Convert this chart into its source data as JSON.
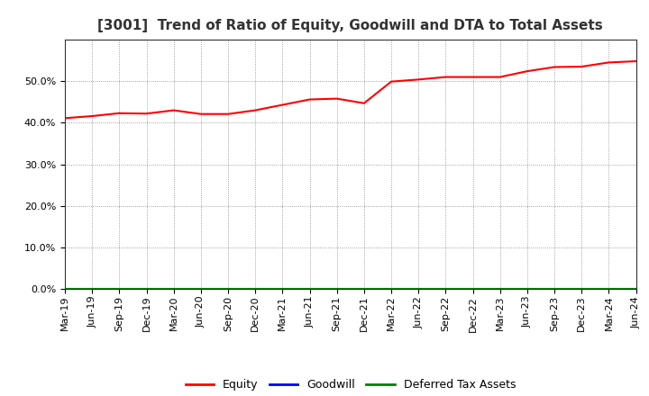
{
  "title": "[3001]  Trend of Ratio of Equity, Goodwill and DTA to Total Assets",
  "x_labels": [
    "Mar-19",
    "Jun-19",
    "Sep-19",
    "Dec-19",
    "Mar-20",
    "Jun-20",
    "Sep-20",
    "Dec-20",
    "Mar-21",
    "Jun-21",
    "Sep-21",
    "Dec-21",
    "Mar-22",
    "Jun-22",
    "Sep-22",
    "Dec-22",
    "Mar-23",
    "Jun-23",
    "Sep-23",
    "Dec-23",
    "Mar-24",
    "Jun-24"
  ],
  "equity": [
    0.411,
    0.416,
    0.423,
    0.422,
    0.43,
    0.421,
    0.421,
    0.43,
    0.443,
    0.456,
    0.458,
    0.447,
    0.499,
    0.504,
    0.51,
    0.51,
    0.51,
    0.524,
    0.534,
    0.535,
    0.545,
    0.548
  ],
  "goodwill": [
    0.0,
    0.0,
    0.0,
    0.0,
    0.0,
    0.0,
    0.0,
    0.0,
    0.0,
    0.0,
    0.0,
    0.0,
    0.0,
    0.0,
    0.0,
    0.0,
    0.0,
    0.0,
    0.0,
    0.0,
    0.0,
    0.0
  ],
  "dta": [
    0.0,
    0.0,
    0.0,
    0.0,
    0.0,
    0.0,
    0.0,
    0.0,
    0.0,
    0.0,
    0.0,
    0.0,
    0.0,
    0.0,
    0.0,
    0.0,
    0.0,
    0.0,
    0.0,
    0.0,
    0.0,
    0.0
  ],
  "equity_color": "#FF0000",
  "goodwill_color": "#0000FF",
  "dta_color": "#008000",
  "ylim": [
    0.0,
    0.6
  ],
  "yticks": [
    0.0,
    0.1,
    0.2,
    0.3,
    0.4,
    0.5
  ],
  "background_color": "#FFFFFF",
  "plot_bg_color": "#FFFFFF",
  "grid_color": "#888888",
  "title_fontsize": 11,
  "tick_fontsize": 8,
  "legend_labels": [
    "Equity",
    "Goodwill",
    "Deferred Tax Assets"
  ],
  "legend_fontsize": 9
}
